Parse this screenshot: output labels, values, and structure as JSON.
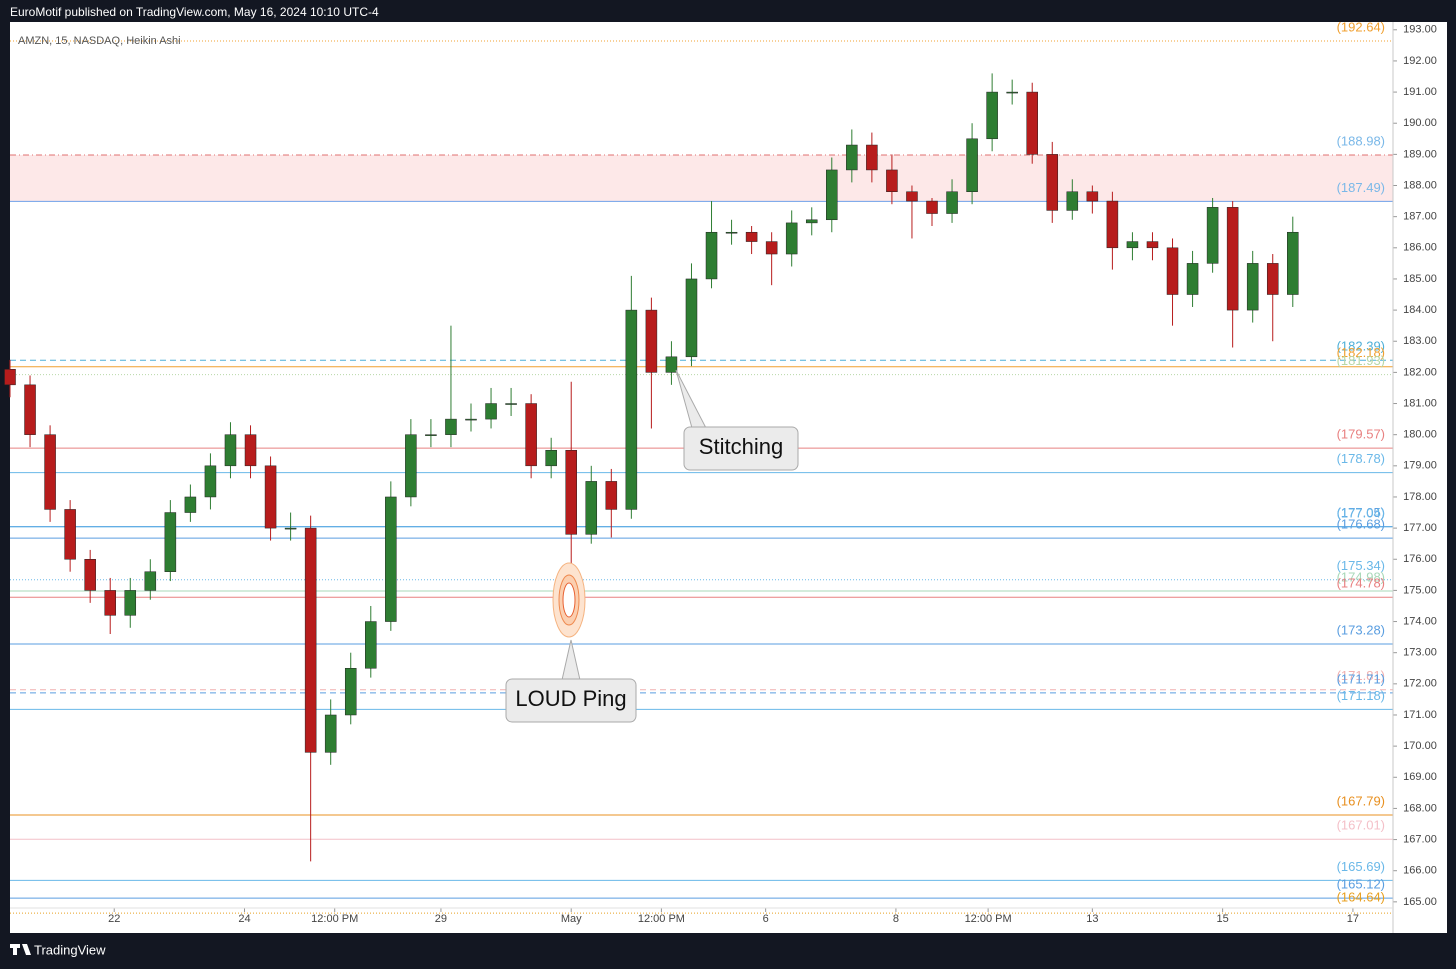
{
  "header": {
    "title": "EuroMotif published on TradingView.com, May 16, 2024 10:10 UTC-4"
  },
  "footer": {
    "brand": "TradingView"
  },
  "chart_data": {
    "type": "candlestick",
    "symbol": "AMZN, 15, NASDAQ, Heikin Ashi",
    "up_color": "#2e7d32",
    "down_color": "#b71c1c",
    "xlim": [
      0,
      69
    ],
    "xticks": [
      {
        "value": 5.2,
        "label": "22"
      },
      {
        "value": 11.7,
        "label": "24"
      },
      {
        "value": 16.2,
        "label": "12:00 PM"
      },
      {
        "value": 21.5,
        "label": "29"
      },
      {
        "value": 28,
        "label": "May"
      },
      {
        "value": 32.5,
        "label": "12:00 PM"
      },
      {
        "value": 37.7,
        "label": "6"
      },
      {
        "value": 44.2,
        "label": "8"
      },
      {
        "value": 48.8,
        "label": "12:00 PM"
      },
      {
        "value": 54,
        "label": "13"
      },
      {
        "value": 60.5,
        "label": "15"
      },
      {
        "value": 67,
        "label": "17"
      }
    ],
    "ylim": [
      164,
      193.25
    ],
    "yticks": [
      {
        "value": 165,
        "label": "165.00"
      },
      {
        "value": 166,
        "label": "166.00"
      },
      {
        "value": 167,
        "label": "167.00"
      },
      {
        "value": 168,
        "label": "168.00"
      },
      {
        "value": 169,
        "label": "169.00"
      },
      {
        "value": 170,
        "label": "170.00"
      },
      {
        "value": 171,
        "label": "171.00"
      },
      {
        "value": 172,
        "label": "172.00"
      },
      {
        "value": 173,
        "label": "173.00"
      },
      {
        "value": 174,
        "label": "174.00"
      },
      {
        "value": 175,
        "label": "175.00"
      },
      {
        "value": 176,
        "label": "176.00"
      },
      {
        "value": 177,
        "label": "177.00"
      },
      {
        "value": 178,
        "label": "178.00"
      },
      {
        "value": 179,
        "label": "179.00"
      },
      {
        "value": 180,
        "label": "180.00"
      },
      {
        "value": 181,
        "label": "181.00"
      },
      {
        "value": 182,
        "label": "182.00"
      },
      {
        "value": 183,
        "label": "183.00"
      },
      {
        "value": 184,
        "label": "184.00"
      },
      {
        "value": 185,
        "label": "185.00"
      },
      {
        "value": 186,
        "label": "186.00"
      },
      {
        "value": 187,
        "label": "187.00"
      },
      {
        "value": 188,
        "label": "188.00"
      },
      {
        "value": 189,
        "label": "189.00"
      },
      {
        "value": 190,
        "label": "190.00"
      },
      {
        "value": 191,
        "label": "191.00"
      },
      {
        "value": 192,
        "label": "192.00"
      },
      {
        "value": 193,
        "label": "193.00"
      }
    ],
    "open": [
      182.1,
      181.6,
      180,
      177.6,
      176,
      175,
      174.2,
      175,
      175.6,
      177.5,
      178,
      179,
      180,
      179,
      177,
      177,
      169.8,
      171,
      172.5,
      174,
      178,
      180,
      180,
      180.5,
      180.5,
      181,
      181,
      179,
      179.5,
      176.8,
      178.5,
      177.6,
      184,
      182,
      182.5,
      185,
      186.5,
      186.5,
      186.2,
      185.8,
      186.8,
      186.9,
      188.5,
      189.3,
      188.5,
      187.8,
      187.5,
      187.1,
      187.8,
      189.5,
      191,
      191,
      189,
      187.2,
      187.8,
      187.5,
      186,
      186.2,
      186,
      184.5,
      185.5,
      187.3,
      184,
      185.5,
      184.5
    ],
    "high": [
      182.4,
      181.9,
      180.3,
      177.9,
      176.3,
      175.4,
      175.4,
      176,
      177.9,
      178.4,
      179.4,
      180.4,
      180.3,
      179.3,
      177.5,
      177.4,
      171.5,
      173,
      174.5,
      178.5,
      180.5,
      180.5,
      183.5,
      181,
      181.5,
      181.5,
      181.3,
      179.9,
      181.7,
      179,
      178.9,
      185.1,
      184.4,
      183,
      185.5,
      187.5,
      186.9,
      186.7,
      186.5,
      187.2,
      187.3,
      188.9,
      189.8,
      189.7,
      189,
      188,
      187.6,
      188.2,
      190,
      191.6,
      191.4,
      191.3,
      189.4,
      188.2,
      188,
      187.8,
      186.5,
      186.5,
      186.3,
      185.9,
      187.6,
      187.5,
      185.9,
      185.8,
      187
    ],
    "low": [
      181.2,
      179.6,
      177.2,
      175.6,
      174.6,
      173.6,
      173.8,
      174.7,
      175.3,
      177.2,
      177.6,
      178.6,
      178.6,
      176.6,
      176.6,
      166.3,
      169.4,
      170.7,
      172.2,
      173.7,
      177.7,
      179.6,
      179.6,
      180.1,
      180.2,
      180.6,
      178.6,
      178.6,
      174.9,
      176.5,
      176.7,
      177.3,
      180.2,
      181.6,
      182.2,
      184.7,
      186.1,
      185.8,
      184.8,
      185.4,
      186.4,
      186.5,
      188.1,
      188.1,
      187.4,
      186.3,
      186.7,
      186.8,
      187.4,
      189.1,
      190.6,
      188.7,
      186.8,
      186.9,
      187.1,
      185.3,
      185.6,
      185.6,
      183.5,
      184.1,
      185.2,
      182.8,
      183.6,
      183,
      184.1
    ],
    "close": [
      181.6,
      180,
      177.6,
      176,
      175,
      174.2,
      175,
      175.6,
      177.5,
      178,
      179,
      180,
      179,
      177,
      177,
      169.8,
      171,
      172.5,
      174,
      178,
      180,
      180,
      180.5,
      180.5,
      181,
      181,
      179,
      179.5,
      176.8,
      178.5,
      177.6,
      184,
      182,
      182.5,
      185,
      186.5,
      186.5,
      186.2,
      185.8,
      186.8,
      186.9,
      188.5,
      189.3,
      188.5,
      187.8,
      187.5,
      187.1,
      187.8,
      189.5,
      191,
      191,
      189,
      187.2,
      187.8,
      187.5,
      186,
      186.2,
      186,
      184.5,
      185.5,
      187.3,
      184,
      185.5,
      184.5,
      186.5
    ],
    "zone_color": "#fde8e8",
    "levels": [
      {
        "value": 192.64,
        "label": "(192.64)",
        "color": "#f0a030",
        "style": "dotted"
      },
      {
        "value": 188.98,
        "label": "(188.98)",
        "color": "#e07070",
        "style": "dashdot",
        "label_color": "#7ab8e8"
      },
      {
        "value": 187.49,
        "label": "(187.49)",
        "color": "#6fa0e8",
        "style": "solid",
        "label_color": "#7ab8e8"
      },
      {
        "value": 182.39,
        "label": "(182.39)",
        "color": "#4fb0d8",
        "style": "dashed"
      },
      {
        "value": 182.18,
        "label": "(182.18)",
        "color": "#f0a030",
        "style": "solid"
      },
      {
        "value": 181.93,
        "label": "(181.93)",
        "color": "#b8d8a8",
        "style": "dotted"
      },
      {
        "value": 179.57,
        "label": "(179.57)",
        "color": "#e88080",
        "style": "solid"
      },
      {
        "value": 178.78,
        "label": "(178.78)",
        "color": "#6ab8e8",
        "style": "solid"
      },
      {
        "value": 177.05,
        "label": "(177.05)",
        "color": "#5a9ee0",
        "style": "solid"
      },
      {
        "value": 176.68,
        "label": "(176.68)",
        "color": "#5a9ee0",
        "style": "solid"
      },
      {
        "value": 177.04,
        "label": "(177.04)",
        "color": "#6ab8e8",
        "style": "solid"
      },
      {
        "value": 175.34,
        "label": "(175.34)",
        "color": "#6ab8e8",
        "style": "dotted"
      },
      {
        "value": 174.98,
        "label": "(174.98)",
        "color": "#a8d8b8",
        "style": "solid"
      },
      {
        "value": 174.78,
        "label": "(174.78)",
        "color": "#e88080",
        "style": "solid"
      },
      {
        "value": 173.28,
        "label": "(173.28)",
        "color": "#5a9ee0",
        "style": "solid"
      },
      {
        "value": 171.81,
        "label": "(171.81)",
        "color": "#f0b0b0",
        "style": "dashed"
      },
      {
        "value": 171.71,
        "label": "(171.71)",
        "color": "#5a9ee0",
        "style": "dashed"
      },
      {
        "value": 171.18,
        "label": "(171.18)",
        "color": "#6ab8e8",
        "style": "solid"
      },
      {
        "value": 167.79,
        "label": "(167.79)",
        "color": "#e89020",
        "style": "solid"
      },
      {
        "value": 167.01,
        "label": "(167.01)",
        "color": "#f4c0c8",
        "style": "solid"
      },
      {
        "value": 165.69,
        "label": "(165.69)",
        "color": "#6ab8e8",
        "style": "solid"
      },
      {
        "value": 165.12,
        "label": "(165.12)",
        "color": "#5a9ee0",
        "style": "solid"
      },
      {
        "value": 164.64,
        "label": "(164.64)",
        "color": "#e8a020",
        "style": "dotted"
      }
    ],
    "annotations": [
      {
        "text": "Stitching"
      },
      {
        "text": "LOUD Ping"
      }
    ]
  }
}
